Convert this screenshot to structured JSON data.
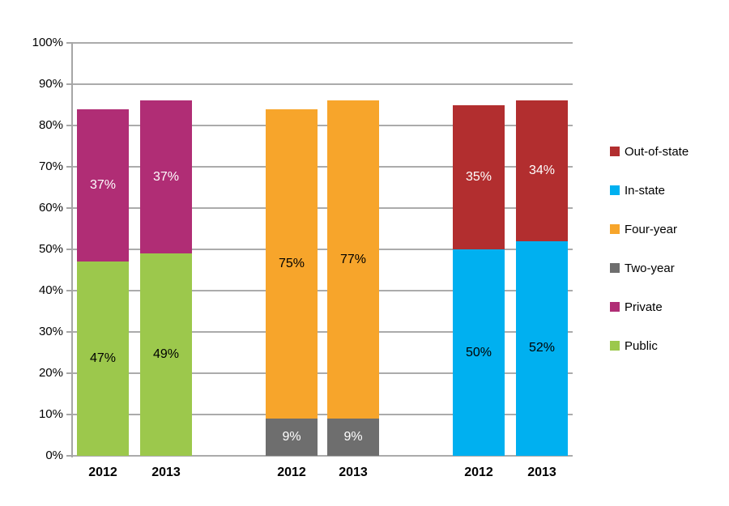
{
  "chart_data": {
    "type": "bar",
    "stacked": true,
    "title": "",
    "xlabel": "",
    "ylabel": "",
    "ylim": [
      0,
      100
    ],
    "ytick_step": 10,
    "grid": true,
    "legend_position": "right",
    "colors": {
      "Out-of-state": "#B22E2F",
      "In-state": "#00B0F0",
      "Four-year": "#F7A52B",
      "Two-year": "#6E6E6E",
      "Private": "#B02D75",
      "Public": "#9CC84C"
    },
    "label_text_colors": {
      "Out-of-state": "#FFFFFF",
      "In-state": "#000000",
      "Four-year": "#000000",
      "Two-year": "#FFFFFF",
      "Private": "#FFFFFF",
      "Public": "#000000"
    },
    "groups": [
      {
        "bars": [
          {
            "x": "2012",
            "segments": [
              {
                "series": "Public",
                "value": 47,
                "label": "47%"
              },
              {
                "series": "Private",
                "value": 37,
                "label": "37%"
              }
            ]
          },
          {
            "x": "2013",
            "segments": [
              {
                "series": "Public",
                "value": 49,
                "label": "49%"
              },
              {
                "series": "Private",
                "value": 37,
                "label": "37%"
              }
            ]
          }
        ]
      },
      {
        "bars": [
          {
            "x": "2012",
            "segments": [
              {
                "series": "Two-year",
                "value": 9,
                "label": "9%"
              },
              {
                "series": "Four-year",
                "value": 75,
                "label": "75%"
              }
            ]
          },
          {
            "x": "2013",
            "segments": [
              {
                "series": "Two-year",
                "value": 9,
                "label": "9%"
              },
              {
                "series": "Four-year",
                "value": 77,
                "label": "77%"
              }
            ]
          }
        ]
      },
      {
        "bars": [
          {
            "x": "2012",
            "segments": [
              {
                "series": "In-state",
                "value": 50,
                "label": "50%"
              },
              {
                "series": "Out-of-state",
                "value": 35,
                "label": "35%"
              }
            ]
          },
          {
            "x": "2013",
            "segments": [
              {
                "series": "In-state",
                "value": 52,
                "label": "52%"
              },
              {
                "series": "Out-of-state",
                "value": 34,
                "label": "34%"
              }
            ]
          }
        ]
      }
    ]
  },
  "y_axis": {
    "tick_labels": [
      "100%",
      "90%",
      "80%",
      "70%",
      "60%",
      "50%",
      "40%",
      "30%",
      "20%",
      "10%",
      "0%"
    ]
  },
  "legend": {
    "items": [
      {
        "label": "Out-of-state"
      },
      {
        "label": "In-state"
      },
      {
        "label": "Four-year"
      },
      {
        "label": "Two-year"
      },
      {
        "label": "Private"
      },
      {
        "label": "Public"
      }
    ]
  }
}
